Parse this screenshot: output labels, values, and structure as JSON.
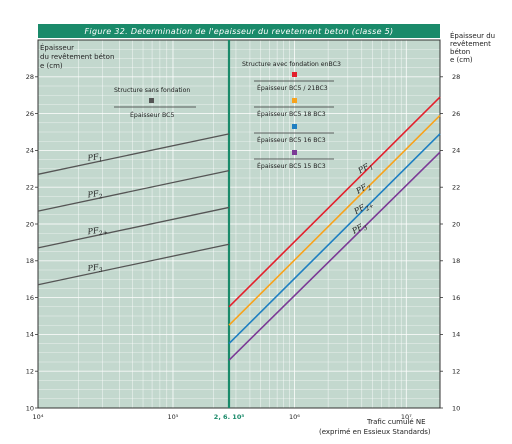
{
  "chart_data": {
    "type": "line",
    "title": "Figure 32. Determination de l'epaisseur du revetement beton (classe 5)",
    "ylabel_left": [
      "Épaisseur",
      "du revêtement béton",
      "e (cm)"
    ],
    "ylabel_right": [
      "Épaisseur du",
      "revêtement",
      "béton",
      "e (cm)"
    ],
    "xlabel": [
      "Trafic cumulé NE",
      "(exprimé en Essieux Standards)"
    ],
    "x_scale": "log",
    "xlim": [
      10000,
      20000000
    ],
    "ylim": [
      10,
      30
    ],
    "y_ticks": [
      10,
      12,
      14,
      16,
      18,
      20,
      22,
      24,
      26,
      28
    ],
    "x_ticks": [
      {
        "value": 10000,
        "label": "10⁴"
      },
      {
        "value": 100000,
        "label": "10⁵"
      },
      {
        "value": 260000,
        "label": "2, 6. 10⁵"
      },
      {
        "value": 1000000,
        "label": "10⁶"
      },
      {
        "value": 10000000,
        "label": "10⁷"
      }
    ],
    "divider_x": 260000,
    "left_panel": {
      "legend_title": "Structure sans fondation",
      "legend_item": "Épaisseur BC5",
      "legend_color": "#555555",
      "series": [
        {
          "label": "PF1",
          "x": [
            10000,
            260000
          ],
          "values": [
            22.7,
            24.9
          ]
        },
        {
          "label": "PF2",
          "x": [
            10000,
            260000
          ],
          "values": [
            20.7,
            22.9
          ]
        },
        {
          "label": "PF2+",
          "x": [
            10000,
            260000
          ],
          "values": [
            18.7,
            20.9
          ]
        },
        {
          "label": "PF3",
          "x": [
            10000,
            260000
          ],
          "values": [
            16.7,
            18.9
          ]
        }
      ]
    },
    "right_panel": {
      "legend_title": "Structure avec fondation enBC3",
      "series": [
        {
          "name": "Épaisseur BC5 / 21BC3",
          "label": "PF1",
          "color": "#e3202c",
          "x": [
            260000,
            20000000
          ],
          "values": [
            15.5,
            26.9
          ]
        },
        {
          "name": "Épaisseur BC5 18 BC3",
          "label": "PF2",
          "color": "#f7a21b",
          "x": [
            260000,
            20000000
          ],
          "values": [
            14.5,
            25.9
          ]
        },
        {
          "name": "Épaisseur BC5 16 BC3",
          "label": "PF2+",
          "color": "#1e7fc1",
          "x": [
            260000,
            20000000
          ],
          "values": [
            13.5,
            24.9
          ]
        },
        {
          "name": "Épaisseur BC5 15 BC3",
          "label": "PF3",
          "color": "#7b3a96",
          "x": [
            260000,
            20000000
          ],
          "values": [
            12.6,
            23.9
          ]
        }
      ]
    },
    "grid": true
  },
  "colors": {
    "background": "#c3d8ce",
    "grid": "#ffffff",
    "divider": "#1a8a6a",
    "title_bar": "#1a8a6a"
  }
}
